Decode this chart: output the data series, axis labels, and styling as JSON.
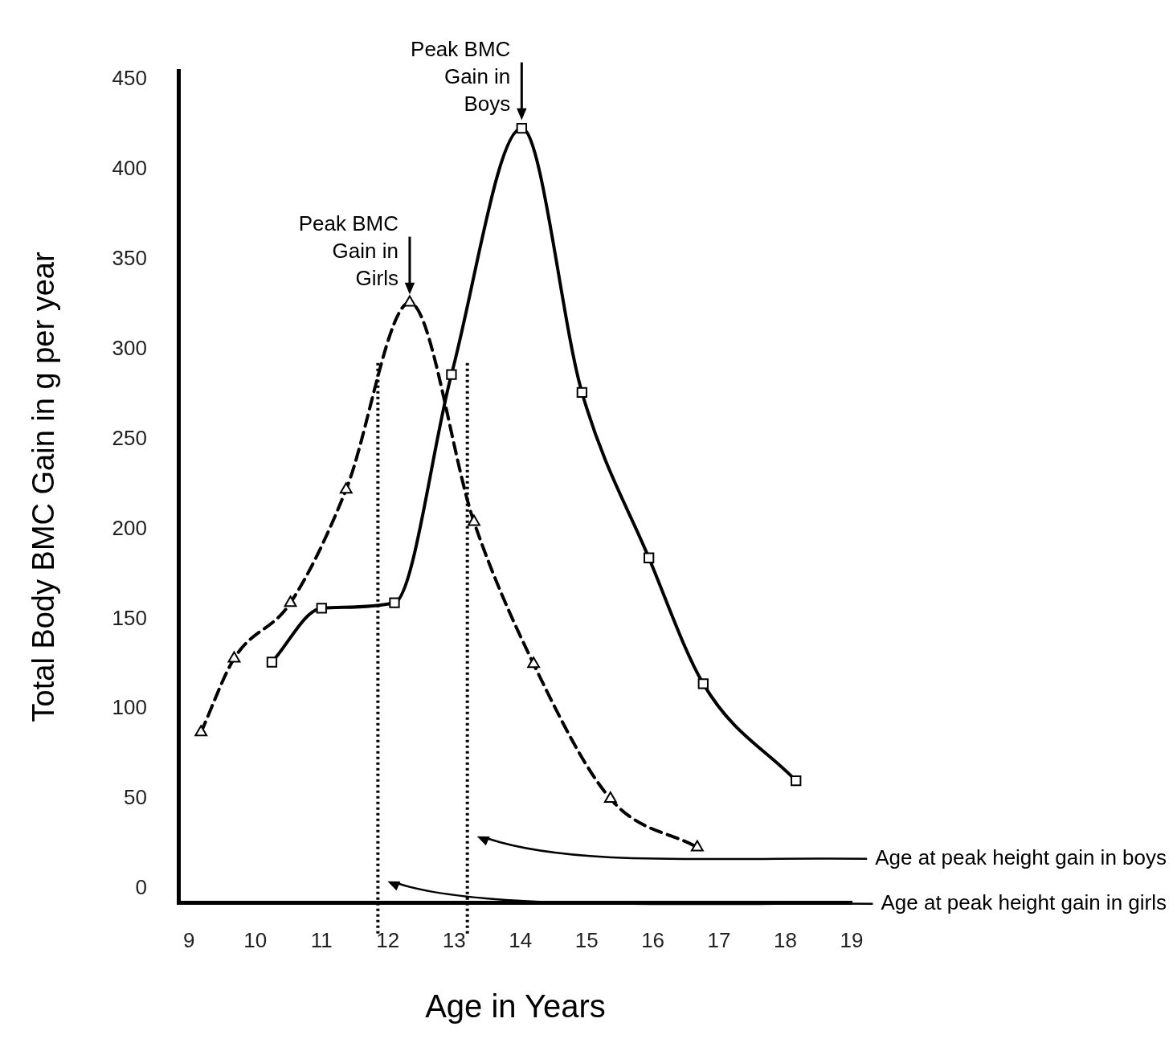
{
  "chart_data": {
    "type": "line",
    "xlabel": "Age in Years",
    "ylabel": "Total Body BMC Gain in g per year",
    "xlim": [
      8.85,
      19
    ],
    "xticks": [
      9,
      10,
      11,
      12,
      13,
      14,
      15,
      16,
      17,
      18,
      19
    ],
    "ylim": [
      -8,
      455
    ],
    "yticks": [
      0,
      50,
      100,
      150,
      200,
      250,
      300,
      350,
      400,
      450
    ],
    "grid": false,
    "legend": false,
    "series": [
      {
        "color": "#000000",
        "line_style": "dashed",
        "marker": "triangle",
        "x": [
          9.18,
          9.68,
          10.53,
          11.37,
          12.33,
          13.3,
          14.2,
          15.36,
          16.67
        ],
        "values": [
          87,
          128,
          159,
          222,
          326,
          204,
          125,
          50,
          23
        ]
      },
      {
        "color": "#000000",
        "line_style": "solid",
        "marker": "square",
        "x": [
          10.25,
          11.0,
          12.1,
          12.96,
          14.02,
          14.93,
          15.94,
          16.76,
          18.16
        ],
        "values": [
          126,
          156,
          159,
          286,
          423,
          276,
          184,
          114,
          60
        ]
      }
    ],
    "ref_lines": [
      {
        "axis": "x",
        "value": 11.85,
        "line_style": "dotted",
        "color": "#000000"
      },
      {
        "axis": "x",
        "value": 13.2,
        "line_style": "dotted",
        "color": "#000000"
      }
    ],
    "annotations": [
      {
        "text": "Peak BMC Gain in Girls",
        "x": 12.33,
        "y": 326
      },
      {
        "text": "Peak BMC Gain in Boys",
        "x": 14.02,
        "y": 423
      },
      "Age at peak height gain in boys",
      "Age at peak height gain in girls"
    ]
  }
}
